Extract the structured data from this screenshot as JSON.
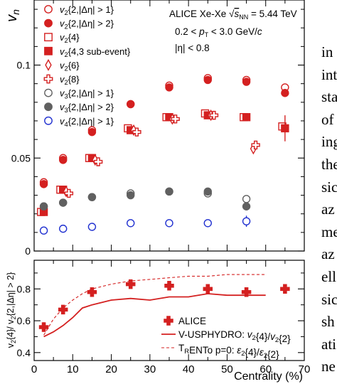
{
  "side_text": [
    "in",
    "int",
    "sta",
    "of",
    "ing",
    "the",
    "sic",
    "az",
    "me",
    "az",
    "ell",
    "sic",
    "sh",
    "ati",
    "ne"
  ],
  "chart_data": [
    {
      "type": "scatter",
      "panel": "top",
      "ylabel": "v",
      "ylabel_sub": "n",
      "ylim": [
        0,
        0.135
      ],
      "xlim": [
        0,
        70
      ],
      "yticks": [
        0,
        0.05,
        0.1
      ],
      "ytick_labels": [
        "0",
        "0.05",
        "0.1"
      ],
      "annotations": [
        "ALICE Xe-Xe √s_NN = 5.44 TeV",
        "0.2 < p_T < 3.0 GeV/c",
        "|η| < 0.8"
      ],
      "legend": [
        {
          "label": "v2{2,|Δη| > 1}",
          "marker": "circle-open",
          "color": "#d42020"
        },
        {
          "label": "v2{2,|Δη| > 2}",
          "marker": "circle-filled",
          "color": "#d42020"
        },
        {
          "label": "v2{4}",
          "marker": "square-open",
          "color": "#d42020"
        },
        {
          "label": "v2{4,3 sub-event}",
          "marker": "square-filled",
          "color": "#d42020"
        },
        {
          "label": "v2{6}",
          "marker": "diamond-open",
          "color": "#d42020"
        },
        {
          "label": "v2{8}",
          "marker": "cross-open",
          "color": "#d42020"
        },
        {
          "label": "v3{2,|Δη| > 1}",
          "marker": "circle-open",
          "color": "#606060"
        },
        {
          "label": "v3{2,|Δη| > 2}",
          "marker": "circle-filled",
          "color": "#606060"
        },
        {
          "label": "v4{2,|Δη| > 1}",
          "marker": "circle-open",
          "color": "#2030d0"
        }
      ],
      "series": [
        {
          "name": "v2{2,|Δη| > 1}",
          "marker": "circle-open",
          "color": "#d42020",
          "x": [
            2.5,
            7.5,
            15,
            25,
            35,
            45,
            55,
            65
          ],
          "y": [
            0.037,
            0.05,
            0.065,
            0.079,
            0.089,
            0.093,
            0.092,
            0.088
          ]
        },
        {
          "name": "v2{2,|Δη| > 2}",
          "marker": "circle-filled",
          "color": "#d42020",
          "x": [
            2.5,
            7.5,
            15,
            25,
            35,
            45,
            55,
            65
          ],
          "y": [
            0.036,
            0.049,
            0.064,
            0.079,
            0.088,
            0.092,
            0.091,
            0.085
          ]
        },
        {
          "name": "v2{4}",
          "marker": "square-open",
          "color": "#d42020",
          "x": [
            1.8,
            6.8,
            14.3,
            24.3,
            34.3,
            44.3,
            54.3,
            64.3
          ],
          "y": [
            0.021,
            0.033,
            0.05,
            0.066,
            0.072,
            0.074,
            0.072,
            0.067
          ]
        },
        {
          "name": "v2{4,3 sub-event}",
          "marker": "square-filled",
          "color": "#d42020",
          "x": [
            2.5,
            7.5,
            15,
            25,
            35,
            45,
            55,
            65
          ],
          "y": [
            0.021,
            0.033,
            0.05,
            0.065,
            0.072,
            0.073,
            0.072,
            0.066
          ],
          "yerr": [
            0,
            0,
            0,
            0,
            0,
            0,
            0,
            0.007
          ]
        },
        {
          "name": "v2{6}",
          "marker": "diamond-open",
          "color": "#d42020",
          "x": [
            8.3,
            15.8,
            25.8,
            35.8,
            45.8,
            56.8
          ],
          "y": [
            0.032,
            0.049,
            0.065,
            0.071,
            0.073,
            0.055
          ]
        },
        {
          "name": "v2{8}",
          "marker": "cross-open",
          "color": "#d42020",
          "x": [
            9.0,
            16.6,
            26.6,
            36.6,
            46.6,
            57.4
          ],
          "y": [
            0.031,
            0.048,
            0.064,
            0.071,
            0.073,
            0.057
          ]
        },
        {
          "name": "v3{2,|Δη| > 1}",
          "marker": "circle-open",
          "color": "#606060",
          "x": [
            2.5,
            7.5,
            15,
            25,
            35,
            45,
            55
          ],
          "y": [
            0.024,
            0.026,
            0.029,
            0.031,
            0.032,
            0.031,
            0.028
          ]
        },
        {
          "name": "v3{2,|Δη| > 2}",
          "marker": "circle-filled",
          "color": "#606060",
          "x": [
            2.5,
            7.5,
            15,
            25,
            35,
            45,
            55
          ],
          "y": [
            0.024,
            0.026,
            0.029,
            0.03,
            0.032,
            0.032,
            0.024
          ]
        },
        {
          "name": "v4{2,|Δη| > 1}",
          "marker": "circle-open",
          "color": "#2030d0",
          "x": [
            2.5,
            7.5,
            15,
            25,
            35,
            45,
            55
          ],
          "y": [
            0.011,
            0.012,
            0.013,
            0.015,
            0.015,
            0.015,
            0.016
          ],
          "yerr": [
            0,
            0,
            0,
            0,
            0,
            0.002,
            0.003
          ]
        }
      ]
    },
    {
      "type": "scatter",
      "panel": "bottom",
      "xlabel": "Centrality (%)",
      "ylabel": "v2{4} / v2{2,|Δη| > 2}",
      "xlim": [
        0,
        70
      ],
      "ylim": [
        0.35,
        0.98
      ],
      "xticks": [
        0,
        10,
        20,
        30,
        40,
        50,
        60,
        70
      ],
      "xtick_labels": [
        "0",
        "10",
        "20",
        "30",
        "40",
        "50",
        "60",
        "70"
      ],
      "yticks": [
        0.4,
        0.6,
        0.8
      ],
      "ytick_labels": [
        "0.4",
        "0.6",
        "0.8"
      ],
      "legend": [
        {
          "label": "ALICE",
          "marker": "cross-filled",
          "color": "#d42020"
        },
        {
          "label": "V-USPHYDRO: v2{4}/v2{2}",
          "marker": "line-solid",
          "color": "#d42020"
        },
        {
          "label": "TRENTo p=0: ε2{4}/ε2{2}",
          "marker": "line-dashed",
          "color": "#d42020"
        }
      ],
      "series": [
        {
          "name": "ALICE",
          "marker": "cross-filled",
          "color": "#d42020",
          "x": [
            2.5,
            7.5,
            15,
            25,
            35,
            45,
            55,
            65
          ],
          "y": [
            0.56,
            0.67,
            0.78,
            0.83,
            0.82,
            0.8,
            0.78,
            0.8
          ],
          "yerr": [
            0.03,
            0.02,
            0.015,
            0.015,
            0.015,
            0.015,
            0.02,
            0.02
          ]
        },
        {
          "name": "V-USPHYDRO: v2{4}/v2{2}",
          "style": "solid",
          "color": "#d42020",
          "x": [
            2.5,
            5,
            7.5,
            10,
            12.5,
            15,
            20,
            25,
            30,
            35,
            40,
            45,
            50,
            55,
            60
          ],
          "y": [
            0.5,
            0.53,
            0.57,
            0.62,
            0.68,
            0.7,
            0.73,
            0.74,
            0.73,
            0.75,
            0.75,
            0.77,
            0.76,
            0.76,
            0.76
          ]
        },
        {
          "name": "TRENTo p=0: ε2{4}/ε2{2}",
          "style": "dashed",
          "color": "#d42020",
          "x": [
            2.5,
            5,
            7.5,
            10,
            12.5,
            15,
            20,
            25,
            30,
            35,
            40,
            45,
            50,
            55,
            60
          ],
          "y": [
            0.51,
            0.61,
            0.68,
            0.73,
            0.77,
            0.8,
            0.83,
            0.85,
            0.86,
            0.87,
            0.88,
            0.88,
            0.89,
            0.89,
            0.89
          ]
        }
      ]
    }
  ]
}
